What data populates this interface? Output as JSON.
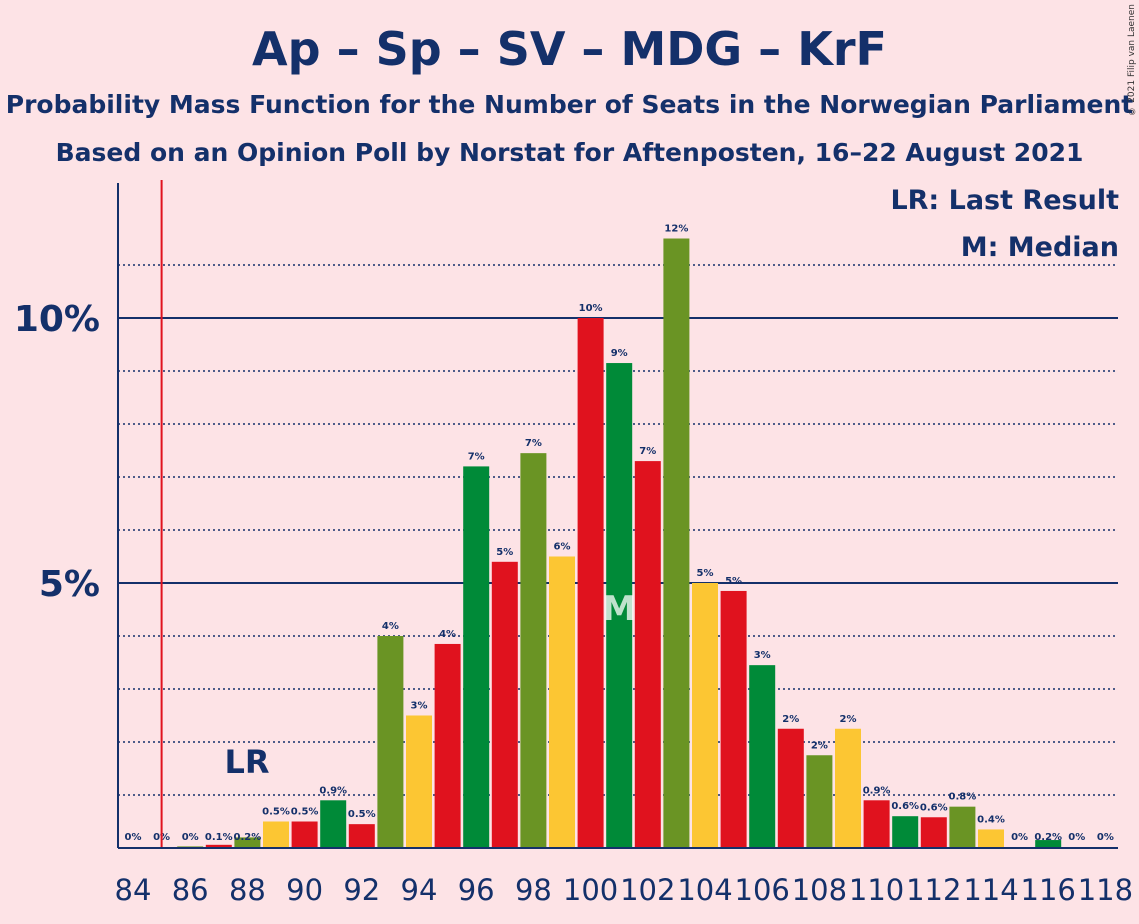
{
  "chart_data": {
    "type": "bar",
    "title": "Ap – Sp – SV – MDG – KrF",
    "subtitle": "Probability Mass Function for the Number of Seats in the Norwegian Parliament",
    "subtitle2": "Based on an Opinion Poll by Norstat for Aftenposten, 16–22 August 2021",
    "copyright": "© 2021 Filip van Laenen",
    "legend": {
      "lr": "LR: Last Result",
      "m": "M: Median"
    },
    "last_result_label": "LR",
    "last_result_seat": 85,
    "median_label": "M",
    "median_seat": 101,
    "ylim": [
      0,
      12.5
    ],
    "y_ticks": [
      {
        "value": 5,
        "label": "5%"
      },
      {
        "value": 10,
        "label": "10%"
      }
    ],
    "x_tick_labels": [
      "84",
      "86",
      "88",
      "90",
      "92",
      "94",
      "96",
      "98",
      "100",
      "102",
      "104",
      "106",
      "108",
      "110",
      "112",
      "114",
      "116",
      "118"
    ],
    "colors": {
      "red": "#e0121e",
      "green": "#008a38",
      "olive": "#6a9424",
      "yellow": "#fcc633",
      "axis": "#14306a",
      "lr_line": "#e0121e"
    },
    "bars": [
      {
        "seat": 84,
        "value": 0,
        "label": "0%",
        "color": "red"
      },
      {
        "seat": 85,
        "value": 0,
        "label": "0%",
        "color": "green"
      },
      {
        "seat": 86,
        "value": 0.03,
        "label": "0%",
        "color": "olive"
      },
      {
        "seat": 87,
        "value": 0.06,
        "label": "0.1%",
        "color": "red"
      },
      {
        "seat": 88,
        "value": 0.2,
        "label": "0.2%",
        "color": "olive"
      },
      {
        "seat": 89,
        "value": 0.5,
        "label": "0.5%",
        "color": "yellow"
      },
      {
        "seat": 90,
        "value": 0.5,
        "label": "0.5%",
        "color": "red"
      },
      {
        "seat": 91,
        "value": 0.9,
        "label": "0.9%",
        "color": "green"
      },
      {
        "seat": 92,
        "value": 0.45,
        "label": "0.5%",
        "color": "red"
      },
      {
        "seat": 93,
        "value": 4.0,
        "label": "4%",
        "color": "olive"
      },
      {
        "seat": 94,
        "value": 2.5,
        "label": "3%",
        "color": "yellow"
      },
      {
        "seat": 95,
        "value": 3.85,
        "label": "4%",
        "color": "red"
      },
      {
        "seat": 96,
        "value": 7.2,
        "label": "7%",
        "color": "green"
      },
      {
        "seat": 97,
        "value": 5.4,
        "label": "5%",
        "color": "red"
      },
      {
        "seat": 98,
        "value": 7.45,
        "label": "7%",
        "color": "olive"
      },
      {
        "seat": 99,
        "value": 5.5,
        "label": "6%",
        "color": "yellow"
      },
      {
        "seat": 100,
        "value": 10.0,
        "label": "10%",
        "color": "red"
      },
      {
        "seat": 101,
        "value": 9.15,
        "label": "9%",
        "color": "green"
      },
      {
        "seat": 102,
        "value": 7.3,
        "label": "7%",
        "color": "red"
      },
      {
        "seat": 103,
        "value": 11.5,
        "label": "12%",
        "color": "olive"
      },
      {
        "seat": 104,
        "value": 5.0,
        "label": "5%",
        "color": "yellow"
      },
      {
        "seat": 105,
        "value": 4.85,
        "label": "5%",
        "color": "red"
      },
      {
        "seat": 106,
        "value": 3.45,
        "label": "3%",
        "color": "green"
      },
      {
        "seat": 107,
        "value": 2.25,
        "label": "2%",
        "color": "red"
      },
      {
        "seat": 108,
        "value": 1.75,
        "label": "2%",
        "color": "olive"
      },
      {
        "seat": 109,
        "value": 2.25,
        "label": "2%",
        "color": "yellow"
      },
      {
        "seat": 110,
        "value": 0.9,
        "label": "0.9%",
        "color": "red"
      },
      {
        "seat": 111,
        "value": 0.6,
        "label": "0.6%",
        "color": "green"
      },
      {
        "seat": 112,
        "value": 0.58,
        "label": "0.6%",
        "color": "red"
      },
      {
        "seat": 113,
        "value": 0.78,
        "label": "0.8%",
        "color": "olive"
      },
      {
        "seat": 114,
        "value": 0.35,
        "label": "0.4%",
        "color": "yellow"
      },
      {
        "seat": 115,
        "value": 0,
        "label": "0%",
        "color": "red"
      },
      {
        "seat": 116,
        "value": 0.15,
        "label": "0.2%",
        "color": "green"
      },
      {
        "seat": 117,
        "value": 0,
        "label": "0%",
        "color": "red"
      },
      {
        "seat": 118,
        "value": 0,
        "label": "0%",
        "color": "olive"
      }
    ]
  }
}
